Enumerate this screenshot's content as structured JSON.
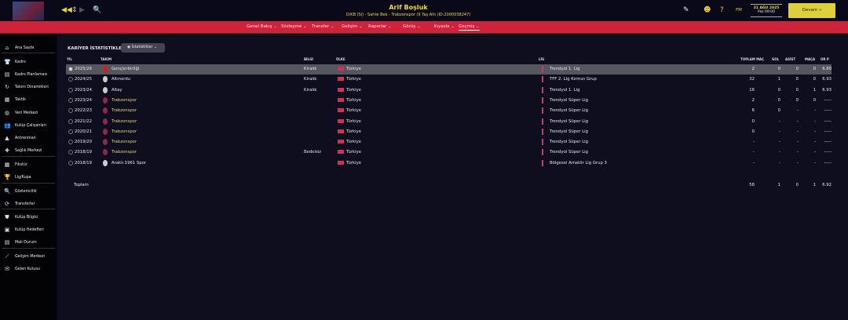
{
  "header": {
    "player_name": "Arif Boşluk",
    "player_sub": "D/KB (Sl) - Sahte Bek - Trabzonspor (9 Yaş Altı (ID:2000038247)",
    "date": "31 AĞU 2025",
    "time": "Paz 09:00",
    "fm": "FM",
    "continue": "Devam »"
  },
  "nav": [
    "Genel Bakış ⌄",
    "Sözleşme ⌄",
    "Transfer ⌄",
    "Gelişim ⌄",
    "Raporlar ⌄",
    "Görüş ⌄",
    "Kıyasla ⌄",
    "Geçmiş ⌄"
  ],
  "sidebar": [
    "Ana Sayfa",
    "Kadro",
    "Kadro Planlaması",
    "Takım Dinamikleri",
    "Taktik",
    "Veri Merkezi",
    "Kulüp Çalışanları",
    "Antrenman",
    "Sağlık Merkezi",
    "Fikstür",
    "Lig/Kupa",
    "Gözlemcilik",
    "Transferler",
    "Kulüp Bilgisi",
    "Kulüp Hedefleri",
    "Mali Durum",
    "Gelişim Merkezi",
    "Gelen Kutusu"
  ],
  "main": {
    "title": "KARİYER İSTATİSTİKLERİ",
    "stats_button": "İstatistikler",
    "headers": [
      "YIL",
      "TAKIM",
      "BİLGİ",
      "ÜLKE",
      "LİG",
      "TOPLAM MAÇ",
      "GOL",
      "ASİST",
      "MAÇA",
      "OR P"
    ],
    "rows": [
      [
        "2025/26",
        "Gençlerbirliği",
        "Kiralık",
        "Türkiye",
        "Trendyol 1. Lig",
        "2",
        "0",
        "0",
        "0",
        "6.80"
      ],
      [
        "2024/25",
        "Altınordu",
        "Kiralık",
        "Türkiye",
        "TFF 2. Lig Kırmızı Grup",
        "32",
        "1",
        "0",
        "0",
        "6.93"
      ],
      [
        "2023/24",
        "Altay",
        "Kiralık",
        "Türkiye",
        "Trendyol 1. Lig",
        "16",
        "0",
        "0",
        "1",
        "6.93"
      ],
      [
        "2023/24",
        "Trabzonspor",
        "",
        "Türkiye",
        "Trendyol Süper Lig",
        "2",
        "0",
        "0",
        "0",
        "-----"
      ],
      [
        "2022/23",
        "Trabzonspor",
        "",
        "Türkiye",
        "Trendyol Süper Lig",
        "6",
        "0",
        "-",
        "-",
        "-----"
      ],
      [
        "2021/22",
        "Trabzonspor",
        "",
        "Türkiye",
        "Trendyol Süper Lig",
        "0",
        "-",
        "-",
        "-",
        "-----"
      ],
      [
        "2020/21",
        "Trabzonspor",
        "",
        "Türkiye",
        "Trendyol Süper Lig",
        "0",
        "-",
        "-",
        "-",
        "-----"
      ],
      [
        "2019/20",
        "Trabzonspor",
        "",
        "Türkiye",
        "Trendyol Süper Lig",
        "-",
        "-",
        "-",
        "-",
        "-----"
      ],
      [
        "2018/19",
        "Trabzonspor",
        "Bedelsiz",
        "Türkiye",
        "Trendyol Süper Lig",
        "-",
        "-",
        "-",
        "-",
        "-----"
      ],
      [
        "2018/19",
        "Araklı 1961 Spor",
        "",
        "Türkiye",
        "Bölgesel Amatör Lig Grup 3",
        "-",
        "-",
        "-",
        "-",
        "-----"
      ]
    ],
    "total": {
      "label": "Toplam",
      "values": [
        "58",
        "1",
        "0",
        "1",
        "6.92"
      ]
    }
  },
  "colors": {
    "nav": "#cf233c",
    "accent": "#f1d93b"
  }
}
